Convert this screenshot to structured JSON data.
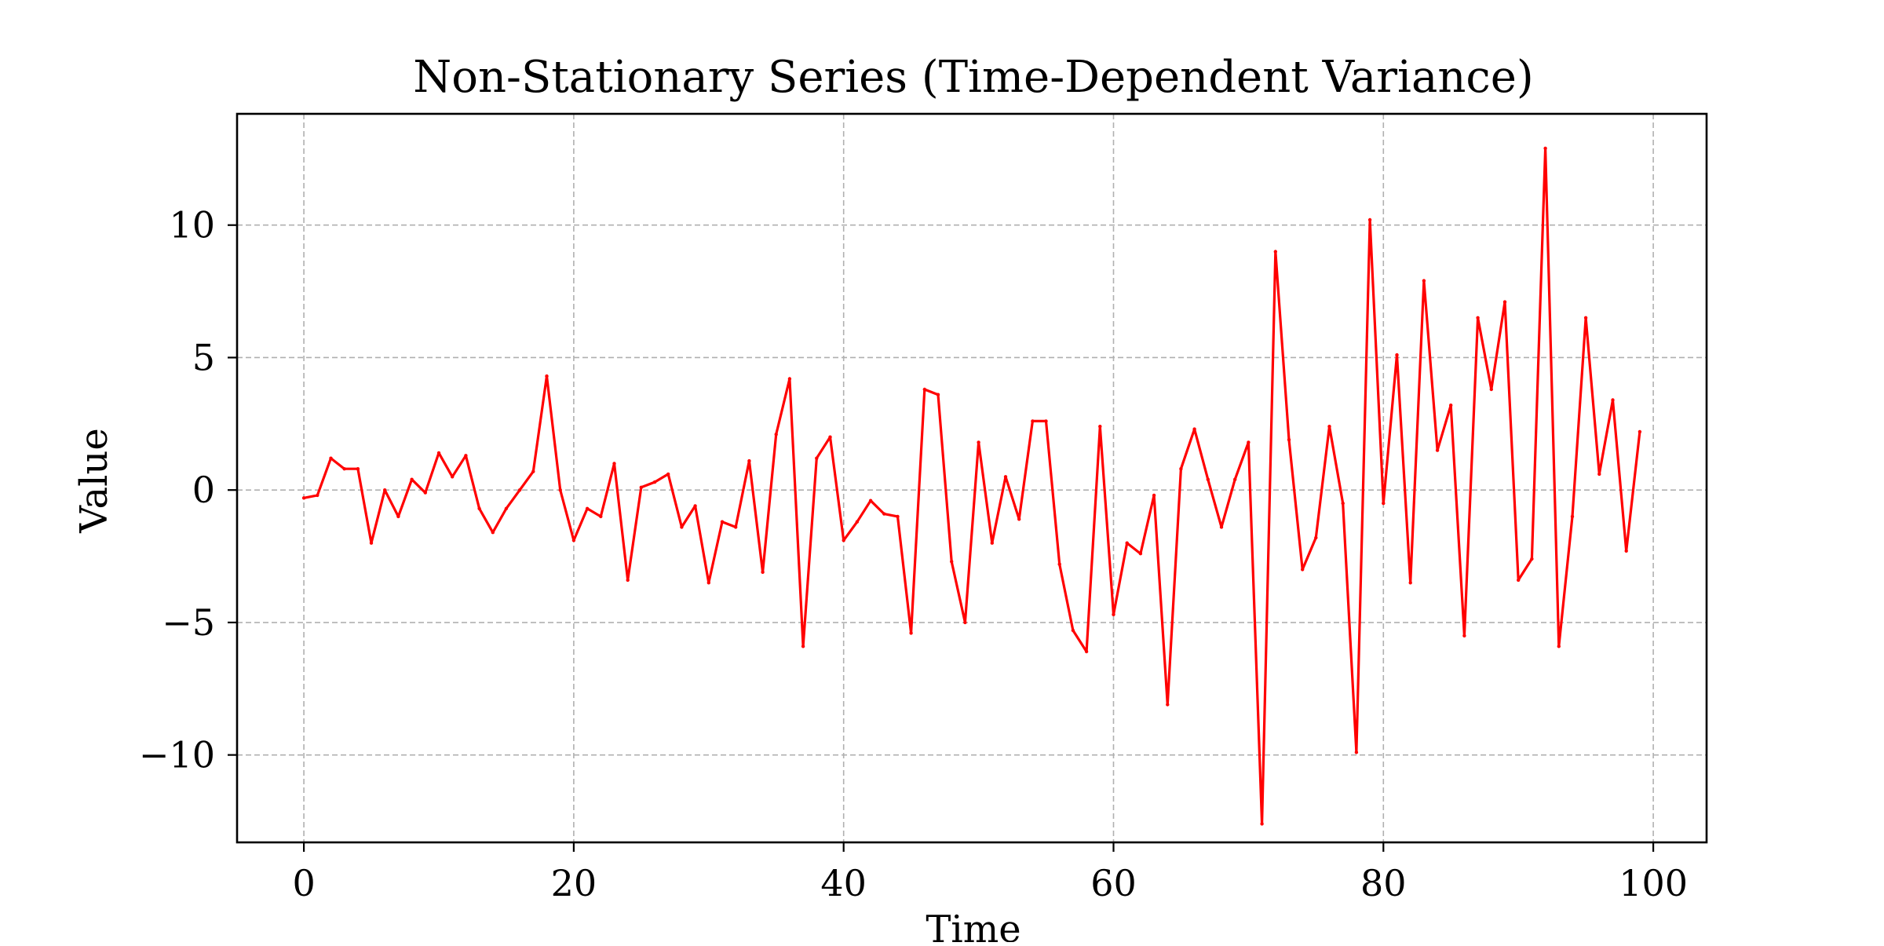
{
  "chart_data": {
    "type": "line",
    "title": "Non-Stationary Series (Time-Dependent Variance)",
    "xlabel": "Time",
    "ylabel": "Value",
    "xlim": [
      -4.95,
      103.95
    ],
    "ylim": [
      -13.3,
      14.2
    ],
    "xticks": [
      0,
      20,
      40,
      60,
      80,
      100
    ],
    "xtick_labels": [
      "0",
      "20",
      "40",
      "60",
      "80",
      "100"
    ],
    "yticks": [
      -10,
      -5,
      0,
      5,
      10
    ],
    "ytick_labels": [
      "−10",
      "−5",
      "0",
      "5",
      "10"
    ],
    "grid": true,
    "series": [
      {
        "color": "#ff0000",
        "x": [
          0,
          1,
          2,
          3,
          4,
          5,
          6,
          7,
          8,
          9,
          10,
          11,
          12,
          13,
          14,
          15,
          16,
          17,
          18,
          19,
          20,
          21,
          22,
          23,
          24,
          25,
          26,
          27,
          28,
          29,
          30,
          31,
          32,
          33,
          34,
          35,
          36,
          37,
          38,
          39,
          40,
          41,
          42,
          43,
          44,
          45,
          46,
          47,
          48,
          49,
          50,
          51,
          52,
          53,
          54,
          55,
          56,
          57,
          58,
          59,
          60,
          61,
          62,
          63,
          64,
          65,
          66,
          67,
          68,
          69,
          70,
          71,
          72,
          73,
          74,
          75,
          76,
          77,
          78,
          79,
          80,
          81,
          82,
          83,
          84,
          85,
          86,
          87,
          88,
          89,
          90,
          91,
          92,
          93,
          94,
          95,
          96,
          97,
          98,
          99
        ],
        "y": [
          -0.3,
          -0.2,
          1.2,
          0.8,
          0.8,
          -2.0,
          0.0,
          -1.0,
          0.4,
          -0.1,
          1.4,
          0.5,
          1.3,
          -0.7,
          -1.6,
          -0.7,
          0.0,
          0.7,
          4.3,
          0.0,
          -1.9,
          -0.7,
          -1.0,
          1.0,
          -3.4,
          0.1,
          0.3,
          0.6,
          -1.4,
          -0.6,
          -3.5,
          -1.2,
          -1.4,
          1.1,
          -3.1,
          2.1,
          4.2,
          -5.9,
          1.2,
          2.0,
          -1.9,
          -1.2,
          -0.4,
          -0.9,
          -1.0,
          -5.4,
          3.8,
          3.6,
          -2.7,
          -5.0,
          1.8,
          -2.0,
          0.5,
          -1.1,
          2.6,
          2.6,
          -2.8,
          -5.3,
          -6.1,
          2.4,
          -4.7,
          -2.0,
          -2.4,
          -0.2,
          -8.1,
          0.8,
          2.3,
          0.4,
          -1.4,
          0.4,
          1.8,
          -12.6,
          9.0,
          1.9,
          -3.0,
          -1.8,
          2.4,
          -0.5,
          -9.9,
          10.2,
          -0.5,
          5.1,
          -3.5,
          7.9,
          1.5,
          3.2,
          -5.5,
          6.5,
          3.8,
          7.1,
          -3.4,
          -2.6,
          12.9,
          -5.9,
          -1.0,
          6.5,
          0.6,
          3.4,
          -2.3,
          2.2
        ]
      }
    ]
  }
}
